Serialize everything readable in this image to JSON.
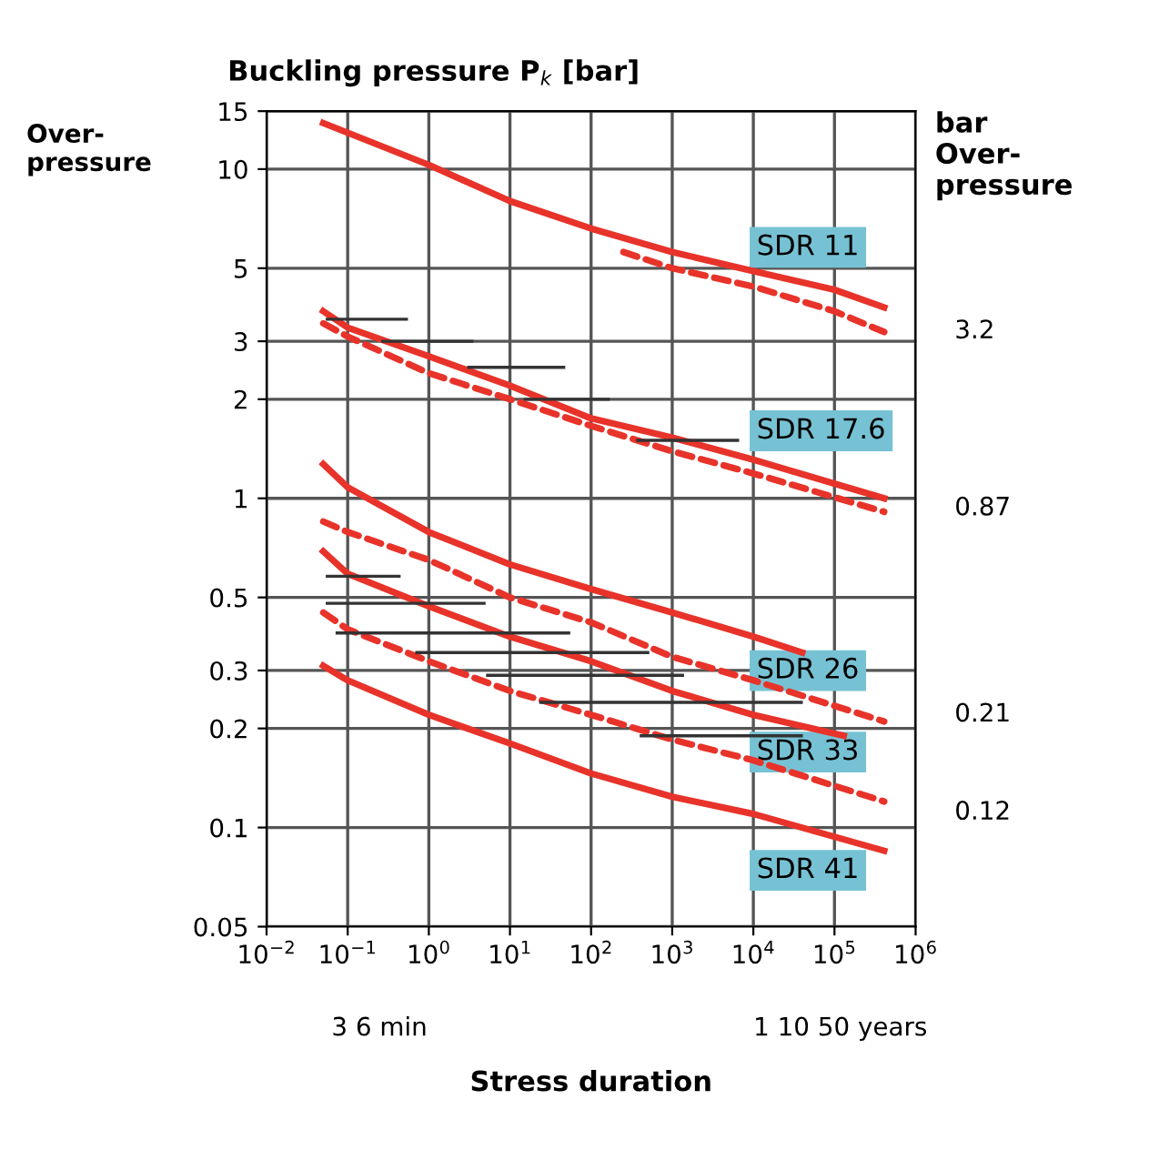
{
  "chart_data": {
    "type": "line",
    "ylabel": "Buckling pressure P$_{k}$ [bar]",
    "xlabel": "Stress duration",
    "y2label": "bar\nOver-\npressure",
    "log": "xy",
    "grid": true,
    "legend": false,
    "xlim": [
      0.01,
      1000000
    ],
    "xticks": [
      {
        "value": 0.01,
        "label": "10$^{−2}$"
      },
      {
        "value": 0.1,
        "label": "10$^{−1}$"
      },
      {
        "value": 1,
        "label": "10$^{0}$"
      },
      {
        "value": 10,
        "label": "10$^{1}$"
      },
      {
        "value": 100,
        "label": "10$^{2}$"
      },
      {
        "value": 1000,
        "label": "10$^{3}$"
      },
      {
        "value": 10000,
        "label": "10$^{4}$"
      },
      {
        "value": 100000,
        "label": "10$^{5}$"
      },
      {
        "value": 1000000,
        "label": "10$^{6}$"
      }
    ],
    "ylim": [
      0.05,
      15
    ],
    "yticks": [
      0.05,
      0.1,
      0.2,
      0.3,
      0.5,
      1,
      2,
      3,
      5,
      10,
      15
    ],
    "series": [
      {
        "line_style": "solid",
        "color": "#e8332a",
        "x": [
          0.05,
          1,
          10,
          100,
          1000,
          10000,
          100000,
          410000
        ],
        "values": [
          13.8,
          10.3,
          8.0,
          6.6,
          5.6,
          4.9,
          4.3,
          3.8
        ]
      },
      {
        "line_style": "dashed",
        "color": "#e8332a",
        "x": [
          250,
          1000,
          10000,
          100000,
          410000
        ],
        "values": [
          5.6,
          5.0,
          4.4,
          3.7,
          3.2
        ]
      },
      {
        "line_style": "solid",
        "color": "#e8332a",
        "x": [
          0.05,
          0.1,
          1,
          10,
          100,
          1000,
          10000,
          410000
        ],
        "values": [
          3.7,
          3.3,
          2.7,
          2.2,
          1.75,
          1.53,
          1.31,
          1.0
        ]
      },
      {
        "line_style": "dashed",
        "color": "#e8332a",
        "x": [
          0.05,
          0.1,
          1,
          10,
          100,
          1000,
          10000,
          410000
        ],
        "values": [
          3.4,
          3.1,
          2.4,
          2.0,
          1.66,
          1.39,
          1.19,
          0.91
        ]
      },
      {
        "line_style": "solid",
        "color": "#e8332a",
        "x": [
          0.05,
          0.1,
          1,
          10,
          100,
          1000,
          10000,
          40000
        ],
        "values": [
          1.27,
          1.08,
          0.79,
          0.63,
          0.53,
          0.45,
          0.38,
          0.34
        ]
      },
      {
        "line_style": "dashed",
        "color": "#e8332a",
        "x": [
          0.05,
          0.1,
          1,
          10,
          100,
          1000,
          10000,
          410000
        ],
        "values": [
          0.85,
          0.79,
          0.65,
          0.5,
          0.42,
          0.33,
          0.28,
          0.21
        ]
      },
      {
        "line_style": "solid",
        "color": "#e8332a",
        "x": [
          0.05,
          0.1,
          1,
          10,
          100,
          1000,
          10000,
          130000
        ],
        "values": [
          0.69,
          0.59,
          0.47,
          0.38,
          0.32,
          0.26,
          0.22,
          0.19
        ]
      },
      {
        "line_style": "dashed",
        "color": "#e8332a",
        "x": [
          0.05,
          0.1,
          1,
          10,
          100,
          1000,
          10000,
          410000
        ],
        "values": [
          0.45,
          0.4,
          0.32,
          0.26,
          0.22,
          0.185,
          0.16,
          0.12
        ]
      },
      {
        "line_style": "solid",
        "color": "#e8332a",
        "x": [
          0.05,
          0.1,
          1,
          10,
          100,
          1000,
          10000,
          410000
        ],
        "values": [
          0.31,
          0.28,
          0.22,
          0.18,
          0.146,
          0.124,
          0.11,
          0.085
        ]
      },
      {
        "color": "#333333",
        "x": [
          0.056,
          0.53
        ],
        "values": [
          3.5,
          3.5
        ]
      },
      {
        "color": "#333333",
        "x": [
          0.27,
          3.4
        ],
        "values": [
          3.0,
          3.0
        ]
      },
      {
        "color": "#333333",
        "x": [
          3.1,
          46
        ],
        "values": [
          2.5,
          2.5
        ]
      },
      {
        "color": "#333333",
        "x": [
          15.5,
          163
        ],
        "values": [
          2.0,
          2.0
        ]
      },
      {
        "color": "#333333",
        "x": [
          375,
          6400
        ],
        "values": [
          1.5,
          1.5
        ]
      },
      {
        "color": "#333333",
        "x": [
          0.056,
          0.43
        ],
        "values": [
          0.58,
          0.58
        ]
      },
      {
        "color": "#333333",
        "x": [
          0.056,
          4.8
        ],
        "values": [
          0.48,
          0.48
        ]
      },
      {
        "color": "#333333",
        "x": [
          0.074,
          53
        ],
        "values": [
          0.39,
          0.39
        ]
      },
      {
        "color": "#333333",
        "x": [
          0.71,
          500
        ],
        "values": [
          0.34,
          0.34
        ]
      },
      {
        "color": "#333333",
        "x": [
          5.3,
          1340
        ],
        "values": [
          0.29,
          0.29
        ]
      },
      {
        "color": "#333333",
        "x": [
          24,
          39000
        ],
        "values": [
          0.24,
          0.24
        ]
      },
      {
        "color": "#333333",
        "x": [
          415,
          39000
        ],
        "values": [
          0.19,
          0.19
        ]
      }
    ],
    "annotations": [
      "Over-\npressure",
      "3 6 min",
      "1 10 50 years",
      "SDR 11",
      "SDR 17.6",
      "SDR 26",
      "SDR 33",
      "SDR 41",
      "3.2",
      "0.87",
      "0.21",
      "0.12"
    ]
  }
}
